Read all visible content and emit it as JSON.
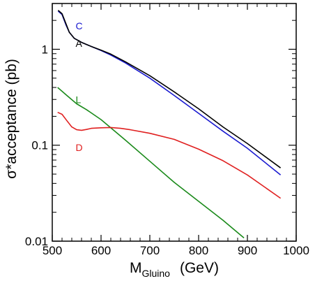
{
  "chart_data": {
    "type": "line",
    "xlabel": {
      "main": "M",
      "sub": "Gluino",
      "unit": "(GeV)"
    },
    "ylabel": "σ*acceptance  (pb)",
    "xlim": [
      500,
      1000
    ],
    "ylim": [
      0.01,
      3
    ],
    "yscale": "log",
    "x_ticks": [
      500,
      600,
      700,
      800,
      900,
      1000
    ],
    "y_ticks": [
      0.01,
      0.1,
      1
    ],
    "x_tick_labels": [
      "500",
      "600",
      "700",
      "800",
      "900",
      "1000"
    ],
    "y_tick_labels": [
      "0.01",
      "0.1",
      "1"
    ],
    "grid": false,
    "legend": "inline labels",
    "series": [
      {
        "name": "C",
        "color": "#1a1ad0",
        "label_at": [
          555,
          1.75
        ],
        "points": [
          [
            512,
            2.5
          ],
          [
            520,
            2.3
          ],
          [
            528,
            1.8
          ],
          [
            535,
            1.5
          ],
          [
            545,
            1.3
          ],
          [
            560,
            1.18
          ],
          [
            580,
            1.07
          ],
          [
            600,
            0.97
          ],
          [
            620,
            0.87
          ],
          [
            650,
            0.72
          ],
          [
            700,
            0.5
          ],
          [
            750,
            0.33
          ],
          [
            800,
            0.215
          ],
          [
            850,
            0.14
          ],
          [
            900,
            0.093
          ],
          [
            968,
            0.049
          ]
        ]
      },
      {
        "name": "A",
        "color": "#000000",
        "label_at": [
          555,
          1.15
        ],
        "points": [
          [
            512,
            2.55
          ],
          [
            520,
            2.35
          ],
          [
            528,
            1.85
          ],
          [
            535,
            1.5
          ],
          [
            545,
            1.3
          ],
          [
            560,
            1.18
          ],
          [
            580,
            1.07
          ],
          [
            600,
            0.98
          ],
          [
            620,
            0.89
          ],
          [
            650,
            0.74
          ],
          [
            700,
            0.53
          ],
          [
            750,
            0.36
          ],
          [
            800,
            0.24
          ],
          [
            850,
            0.155
          ],
          [
            900,
            0.104
          ],
          [
            968,
            0.058
          ]
        ]
      },
      {
        "name": "L",
        "color": "#1a8a1a",
        "label_at": [
          555,
          0.3
        ],
        "points": [
          [
            511,
            0.4
          ],
          [
            530,
            0.33
          ],
          [
            550,
            0.27
          ],
          [
            570,
            0.235
          ],
          [
            600,
            0.185
          ],
          [
            650,
            0.113
          ],
          [
            700,
            0.068
          ],
          [
            750,
            0.041
          ],
          [
            800,
            0.026
          ],
          [
            850,
            0.0165
          ],
          [
            893,
            0.0108
          ]
        ]
      },
      {
        "name": "D",
        "color": "#e02020",
        "label_at": [
          555,
          0.095
        ],
        "points": [
          [
            511,
            0.22
          ],
          [
            520,
            0.21
          ],
          [
            530,
            0.18
          ],
          [
            540,
            0.155
          ],
          [
            550,
            0.145
          ],
          [
            560,
            0.143
          ],
          [
            570,
            0.146
          ],
          [
            580,
            0.15
          ],
          [
            600,
            0.152
          ],
          [
            620,
            0.153
          ],
          [
            640,
            0.15
          ],
          [
            660,
            0.145
          ],
          [
            700,
            0.133
          ],
          [
            750,
            0.115
          ],
          [
            800,
            0.091
          ],
          [
            850,
            0.069
          ],
          [
            900,
            0.049
          ],
          [
            968,
            0.028
          ]
        ]
      }
    ]
  }
}
